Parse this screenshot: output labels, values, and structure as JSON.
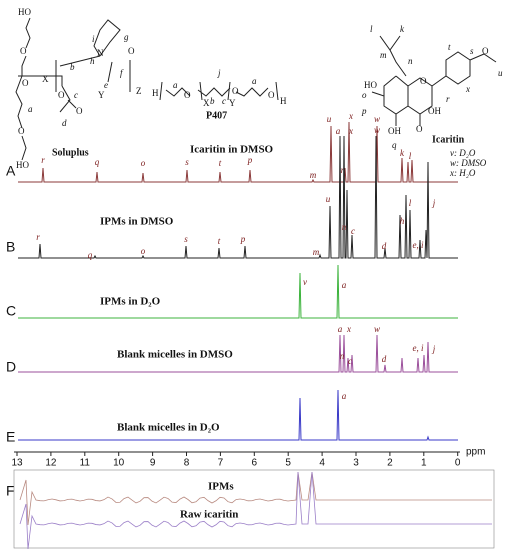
{
  "structures": {
    "soluplus": {
      "labels": [
        "HO",
        "O",
        "X",
        "O",
        "a",
        "O",
        "HO",
        "b",
        "h",
        "N",
        "i",
        "g",
        "O",
        "f",
        "e",
        "Y",
        "Z",
        "c",
        "O",
        "O",
        "d"
      ],
      "name": "Soluplus"
    },
    "p407": {
      "labels": [
        "H",
        "O",
        "a",
        "X",
        "b",
        "c",
        "j",
        "O",
        "Y",
        "a",
        "O",
        "H"
      ],
      "name": "P407"
    },
    "icaritin": {
      "labels": [
        "l",
        "k",
        "m",
        "n",
        "s",
        "t",
        "O",
        "u",
        "o",
        "x",
        "r",
        "p",
        "O",
        "OH",
        "q",
        "OH",
        "O",
        "HO"
      ],
      "name": "Icaritin",
      "legend": [
        "v: D₂O",
        "w: DMSO",
        "x: H₂O"
      ]
    }
  },
  "panels": [
    {
      "label": "A",
      "title": "Icaritin in DMSO",
      "peak_labels": [
        "r",
        "q",
        "o",
        "s",
        "t",
        "p",
        "m",
        "u",
        "n",
        "x",
        "w",
        "k",
        "l"
      ]
    },
    {
      "label": "B",
      "title": "IPMs in DMSO",
      "peak_labels": [
        "r",
        "q",
        "o",
        "s",
        "t",
        "p",
        "m",
        "u",
        "a",
        "x",
        "n",
        "c",
        "w",
        "d",
        "h",
        "l",
        "e, i",
        "j"
      ]
    },
    {
      "label": "C",
      "title": "IPMs in D₂O",
      "peak_labels": [
        "v",
        "a"
      ]
    },
    {
      "label": "D",
      "title": "Blank micelles  in DMSO",
      "peak_labels": [
        "a",
        "x",
        "n",
        "c",
        "w",
        "d",
        "e, i",
        "j"
      ]
    },
    {
      "label": "E",
      "title": "Blank micelles  in D₂O",
      "peak_labels": [
        "a"
      ]
    }
  ],
  "axis": {
    "ticks": [
      13,
      12,
      11,
      10,
      9,
      8,
      7,
      6,
      5,
      4,
      3,
      2,
      1,
      0
    ],
    "unit": "ppm"
  },
  "panel_f": {
    "label": "F",
    "traces": [
      "IPMs",
      "Raw icaritin"
    ]
  }
}
